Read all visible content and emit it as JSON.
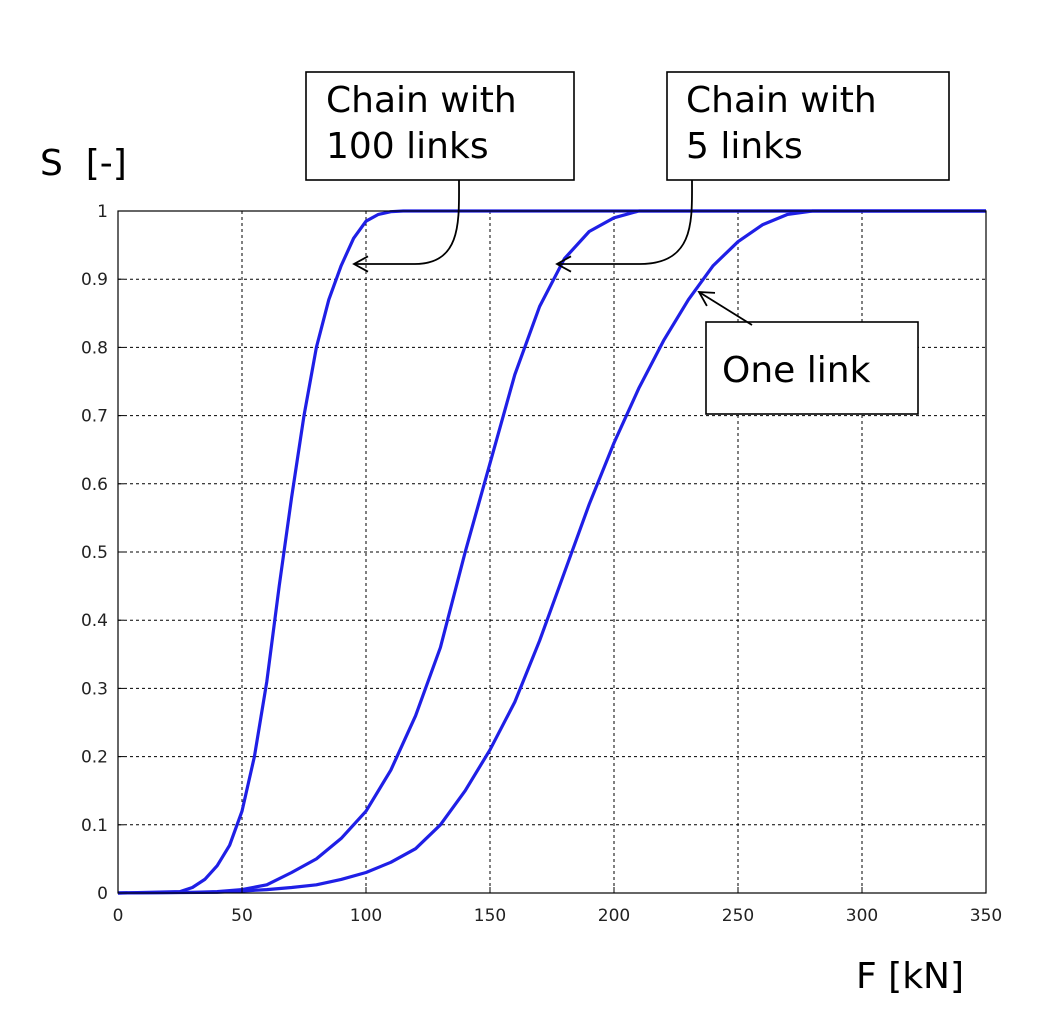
{
  "chart_data": {
    "type": "line",
    "xlabel": "F [kN]",
    "ylabel": "S  [-]",
    "xlim": [
      0,
      350
    ],
    "ylim": [
      0,
      1
    ],
    "x_ticks": [
      0,
      50,
      100,
      150,
      200,
      250,
      300,
      350
    ],
    "y_ticks": [
      0,
      0.1,
      0.2,
      0.3,
      0.4,
      0.5,
      0.6,
      0.7,
      0.8,
      0.9,
      1
    ],
    "grid": true,
    "line_color": "#1f1fe6",
    "series": [
      {
        "x": [
          0,
          25,
          30,
          35,
          40,
          45,
          50,
          55,
          60,
          65,
          70,
          75,
          80,
          85,
          90,
          95,
          100,
          105,
          110,
          115,
          120,
          350
        ],
        "y": [
          0,
          0.002,
          0.008,
          0.02,
          0.04,
          0.07,
          0.12,
          0.2,
          0.31,
          0.45,
          0.58,
          0.7,
          0.8,
          0.87,
          0.92,
          0.96,
          0.985,
          0.995,
          0.999,
          1,
          1,
          1
        ]
      },
      {
        "x": [
          0,
          30,
          40,
          50,
          60,
          70,
          80,
          90,
          100,
          110,
          120,
          130,
          140,
          150,
          160,
          170,
          180,
          190,
          200,
          210,
          220,
          350
        ],
        "y": [
          0,
          0.001,
          0.002,
          0.005,
          0.012,
          0.03,
          0.05,
          0.08,
          0.12,
          0.18,
          0.26,
          0.36,
          0.5,
          0.63,
          0.76,
          0.86,
          0.93,
          0.97,
          0.99,
          1,
          1,
          1
        ]
      },
      {
        "x": [
          0,
          40,
          50,
          60,
          70,
          80,
          90,
          100,
          110,
          120,
          130,
          140,
          150,
          160,
          170,
          180,
          190,
          200,
          210,
          220,
          230,
          240,
          250,
          260,
          270,
          280,
          290,
          350
        ],
        "y": [
          0,
          0.001,
          0.003,
          0.005,
          0.008,
          0.012,
          0.02,
          0.03,
          0.045,
          0.065,
          0.1,
          0.15,
          0.21,
          0.28,
          0.37,
          0.47,
          0.57,
          0.66,
          0.74,
          0.81,
          0.87,
          0.92,
          0.955,
          0.98,
          0.995,
          1,
          1,
          1
        ]
      }
    ],
    "annotations": [
      {
        "text": [
          "Chain with",
          "100 links"
        ]
      },
      {
        "text": [
          "Chain with",
          "5 links"
        ]
      },
      {
        "text": [
          "One link"
        ]
      }
    ]
  }
}
